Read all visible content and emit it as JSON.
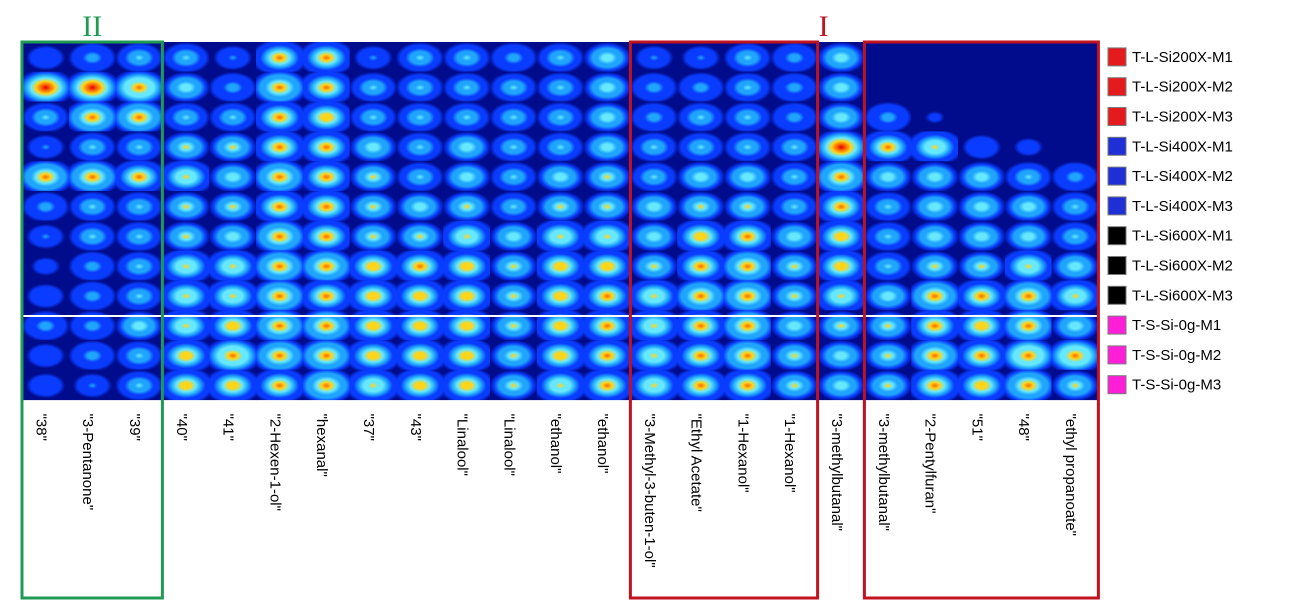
{
  "chart_data": {
    "type": "heatmap",
    "colormap": [
      "#000033",
      "#000c8c",
      "#0a3cff",
      "#1fa5ff",
      "#66e8ff",
      "#ffd51a",
      "#ff6a00",
      "#e10000"
    ],
    "columns": [
      "\"38\"",
      "\"3-Pentanone\"",
      "\"39\"",
      "\"40\"",
      "\"41\"",
      "\"2-Hexen-1-ol\"",
      "\"hexanal\"",
      "\"37\"",
      "\"43\"",
      "\"Linalool\"",
      "\"Linalool\"",
      "\"ethanol\"",
      "\"ethanol\"",
      "\"3-Methyl-3-buten-1-ol\"",
      "\"Ethyl Acetate\"",
      "\"1-Hexanol\"",
      "\"1-Hexanol\"",
      "\"3-methylbutanal\"",
      "\"3-methylbutanal\"",
      "\"2-Pentylfuran\"",
      "\"51\"",
      "\"48\"",
      "\"ethyl propanoate\""
    ],
    "rows": [
      {
        "name": "T-L-Si200X-M1",
        "color": "#e41a1c"
      },
      {
        "name": "T-L-Si200X-M2",
        "color": "#e41a1c"
      },
      {
        "name": "T-L-Si200X-M3",
        "color": "#e41a1c"
      },
      {
        "name": "T-L-Si400X-M1",
        "color": "#1f2fd6"
      },
      {
        "name": "T-L-Si400X-M2",
        "color": "#1f2fd6"
      },
      {
        "name": "T-L-Si400X-M3",
        "color": "#1f2fd6"
      },
      {
        "name": "T-L-Si600X-M1",
        "color": "#000000"
      },
      {
        "name": "T-L-Si600X-M2",
        "color": "#000000"
      },
      {
        "name": "T-L-Si600X-M3",
        "color": "#000000"
      },
      {
        "name": "T-S-Si-0g-M1",
        "color": "#ff1fd8"
      },
      {
        "name": "T-S-Si-0g-M2",
        "color": "#ff1fd8"
      },
      {
        "name": "T-S-Si-0g-M3",
        "color": "#ff1fd8"
      }
    ],
    "values": [
      [
        0.35,
        0.45,
        0.55,
        0.5,
        0.4,
        0.8,
        0.8,
        0.4,
        0.5,
        0.55,
        0.45,
        0.55,
        0.6,
        0.4,
        0.4,
        0.5,
        0.45,
        0.6,
        0.2,
        0.2,
        0.2,
        0.15,
        0.15
      ],
      [
        0.95,
        0.95,
        0.9,
        0.6,
        0.45,
        0.85,
        0.8,
        0.55,
        0.55,
        0.55,
        0.5,
        0.55,
        0.6,
        0.45,
        0.45,
        0.5,
        0.45,
        0.6,
        0.2,
        0.2,
        0.2,
        0.2,
        0.15
      ],
      [
        0.5,
        0.85,
        0.85,
        0.55,
        0.5,
        0.8,
        0.75,
        0.55,
        0.55,
        0.55,
        0.5,
        0.55,
        0.6,
        0.45,
        0.55,
        0.55,
        0.45,
        0.6,
        0.45,
        0.25,
        0.2,
        0.2,
        0.2
      ],
      [
        0.4,
        0.55,
        0.5,
        0.65,
        0.65,
        0.8,
        0.8,
        0.6,
        0.5,
        0.6,
        0.5,
        0.55,
        0.6,
        0.5,
        0.55,
        0.55,
        0.5,
        0.95,
        0.8,
        0.7,
        0.35,
        0.3,
        0.2
      ],
      [
        0.85,
        0.85,
        0.8,
        0.7,
        0.6,
        0.85,
        0.8,
        0.65,
        0.55,
        0.6,
        0.55,
        0.6,
        0.65,
        0.55,
        0.6,
        0.6,
        0.55,
        0.85,
        0.6,
        0.6,
        0.6,
        0.55,
        0.45
      ],
      [
        0.45,
        0.55,
        0.55,
        0.65,
        0.65,
        0.8,
        0.8,
        0.65,
        0.6,
        0.65,
        0.55,
        0.65,
        0.65,
        0.6,
        0.65,
        0.65,
        0.55,
        0.8,
        0.55,
        0.6,
        0.6,
        0.6,
        0.5
      ],
      [
        0.4,
        0.5,
        0.55,
        0.65,
        0.6,
        0.85,
        0.8,
        0.65,
        0.65,
        0.7,
        0.6,
        0.7,
        0.7,
        0.6,
        0.75,
        0.8,
        0.6,
        0.75,
        0.55,
        0.6,
        0.6,
        0.6,
        0.55
      ],
      [
        0.3,
        0.45,
        0.5,
        0.7,
        0.7,
        0.85,
        0.85,
        0.75,
        0.8,
        0.75,
        0.65,
        0.75,
        0.75,
        0.65,
        0.8,
        0.85,
        0.65,
        0.75,
        0.55,
        0.65,
        0.65,
        0.7,
        0.6
      ],
      [
        0.35,
        0.45,
        0.55,
        0.7,
        0.7,
        0.85,
        0.8,
        0.75,
        0.75,
        0.75,
        0.65,
        0.75,
        0.8,
        0.7,
        0.85,
        0.85,
        0.65,
        0.7,
        0.6,
        0.85,
        0.8,
        0.85,
        0.7
      ],
      [
        0.45,
        0.45,
        0.6,
        0.7,
        0.75,
        0.85,
        0.85,
        0.75,
        0.75,
        0.75,
        0.65,
        0.75,
        0.8,
        0.7,
        0.8,
        0.85,
        0.6,
        0.65,
        0.65,
        0.8,
        0.75,
        0.85,
        0.6
      ],
      [
        0.35,
        0.45,
        0.55,
        0.75,
        0.9,
        0.85,
        0.85,
        0.75,
        0.75,
        0.75,
        0.65,
        0.75,
        0.8,
        0.7,
        0.8,
        0.85,
        0.65,
        0.6,
        0.65,
        0.85,
        0.8,
        0.9,
        0.9
      ],
      [
        0.35,
        0.4,
        0.55,
        0.75,
        0.75,
        0.8,
        0.85,
        0.7,
        0.75,
        0.75,
        0.65,
        0.7,
        0.8,
        0.7,
        0.8,
        0.8,
        0.65,
        0.6,
        0.65,
        0.8,
        0.75,
        0.85,
        0.65
      ]
    ],
    "groups": [
      {
        "label": "II",
        "color": "#1e9a55",
        "col_start": 0,
        "col_end": 2
      },
      {
        "label": "I",
        "color": "#c1121f",
        "col_start": 13,
        "col_end": 16
      },
      {
        "label": "",
        "color": "#c1121f",
        "col_start": 18,
        "col_end": 22
      }
    ],
    "xlabel": "",
    "ylabel": "",
    "title": ""
  }
}
